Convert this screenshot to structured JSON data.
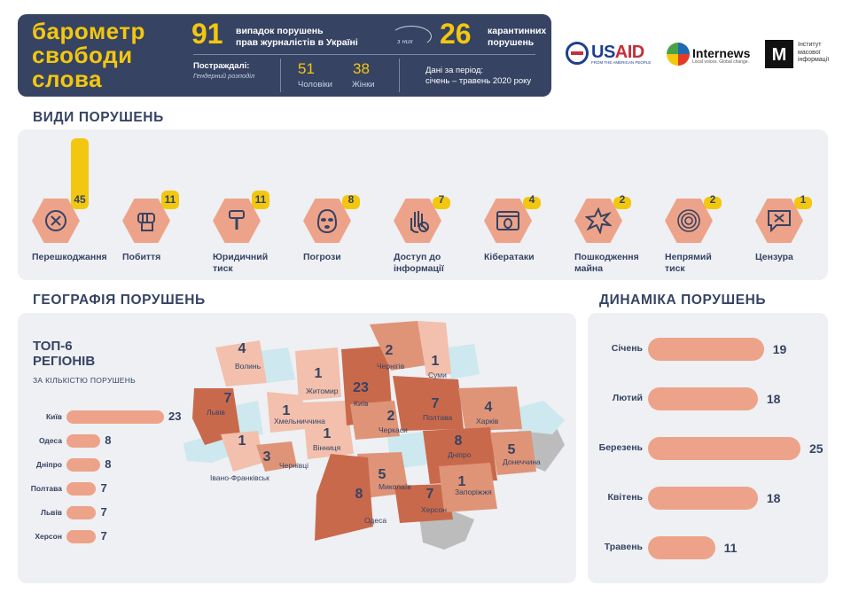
{
  "header": {
    "brand_line1": "барометр",
    "brand_line2": "свободи",
    "brand_line3": "слова",
    "total_cases": "91",
    "total_text_line1": "випадок порушень",
    "total_text_line2": "прав журналістів в Україні",
    "of_them": "з них",
    "quarantine_cases": "26",
    "quarantine_text_line1": "карантинних",
    "quarantine_text_line2": "порушень",
    "victims_label": "Постраждалі:",
    "gender_label": "Гендерний розподіл",
    "men_count": "51",
    "men_label": "Чоловіки",
    "women_count": "38",
    "women_label": "Жінки",
    "period_label": "Дані за період:",
    "period_value": "січень – травень 2020 року"
  },
  "logos": {
    "usaid_prefix": "US",
    "usaid_suffix": "AID",
    "usaid_tagline": "FROM THE AMERICAN PEOPLE",
    "internews": "Internews",
    "internews_tagline": "Local voices. Global change.",
    "imi_mark": "M",
    "imi_line1": "Інститут",
    "imi_line2": "масової",
    "imi_line3": "інформації"
  },
  "types_title": "ВИДИ ПОРУШЕНЬ",
  "types": [
    {
      "label_line1": "Перешкоджання",
      "label_line2": "",
      "count": "45",
      "value": 45
    },
    {
      "label_line1": "Побиття",
      "label_line2": "",
      "count": "11",
      "value": 11
    },
    {
      "label_line1": "Юридичний",
      "label_line2": "тиск",
      "count": "11",
      "value": 11
    },
    {
      "label_line1": "Погрози",
      "label_line2": "",
      "count": "8",
      "value": 8
    },
    {
      "label_line1": "Доступ до",
      "label_line2": "інформації",
      "count": "7",
      "value": 7
    },
    {
      "label_line1": "Кібератаки",
      "label_line2": "",
      "count": "4",
      "value": 4
    },
    {
      "label_line1": "Пошкодження",
      "label_line2": "майна",
      "count": "2",
      "value": 2
    },
    {
      "label_line1": "Непрямий",
      "label_line2": "тиск",
      "count": "2",
      "value": 2
    },
    {
      "label_line1": "Цензура",
      "label_line2": "",
      "count": "1",
      "value": 1
    }
  ],
  "geo_title": "ГЕОГРАФІЯ ПОРУШЕНЬ",
  "top6": {
    "title_line1": "ТОП-6",
    "title_line2": "РЕГІОНІВ",
    "subtitle": "ЗА КІЛЬКІСТЮ ПОРУШЕНЬ",
    "regions": [
      {
        "name": "Київ",
        "count": "23",
        "value": 23
      },
      {
        "name": "Одеса",
        "count": "8",
        "value": 8
      },
      {
        "name": "Дніпро",
        "count": "8",
        "value": 8
      },
      {
        "name": "Полтава",
        "count": "7",
        "value": 7
      },
      {
        "name": "Львів",
        "count": "7",
        "value": 7
      },
      {
        "name": "Херсон",
        "count": "7",
        "value": 7
      }
    ]
  },
  "map_regions": [
    {
      "name": "Волинь",
      "count": "4"
    },
    {
      "name": "Львів",
      "count": "7"
    },
    {
      "name": "Івано-Франківськ",
      "count": "1"
    },
    {
      "name": "Чернівці",
      "count": "3"
    },
    {
      "name": "Житомир",
      "count": "1"
    },
    {
      "name": "Хмельниччина",
      "count": "1"
    },
    {
      "name": "Вінниця",
      "count": "1"
    },
    {
      "name": "Київ",
      "count": "23"
    },
    {
      "name": "Чернігів",
      "count": "2"
    },
    {
      "name": "Суми",
      "count": "1"
    },
    {
      "name": "Черкаси",
      "count": "2"
    },
    {
      "name": "Полтава",
      "count": "7"
    },
    {
      "name": "Харків",
      "count": "4"
    },
    {
      "name": "Дніпро",
      "count": "8"
    },
    {
      "name": "Донеччина",
      "count": "5"
    },
    {
      "name": "Миколаїв",
      "count": "5"
    },
    {
      "name": "Одеса",
      "count": "8"
    },
    {
      "name": "Херсон",
      "count": "7"
    },
    {
      "name": "Запоріжжя",
      "count": "1"
    }
  ],
  "dyn_title": "ДИНАМІКА ПОРУШЕНЬ",
  "months": [
    {
      "name": "Січень",
      "count": "19",
      "value": 19
    },
    {
      "name": "Лютий",
      "count": "18",
      "value": 18
    },
    {
      "name": "Березень",
      "count": "25",
      "value": 25
    },
    {
      "name": "Квітень",
      "count": "18",
      "value": 18
    },
    {
      "name": "Травень",
      "count": "11",
      "value": 11
    }
  ],
  "colors": {
    "navy": "#364363",
    "yellow": "#f3c70f",
    "salmon": "#eda389",
    "dark_region": "#c9694c",
    "mid_region": "#df9477",
    "light_region": "#f2c0ac",
    "no_data": "#cde8ee",
    "occupied": "#bcbcbc",
    "panel": "#eef0f3"
  },
  "icons": [
    "blocked-icon",
    "fist-icon",
    "gavel-icon",
    "balaclava-icon",
    "hand-block-icon",
    "bug-window-icon",
    "explosion-icon",
    "spiral-icon",
    "censored-message-icon"
  ]
}
